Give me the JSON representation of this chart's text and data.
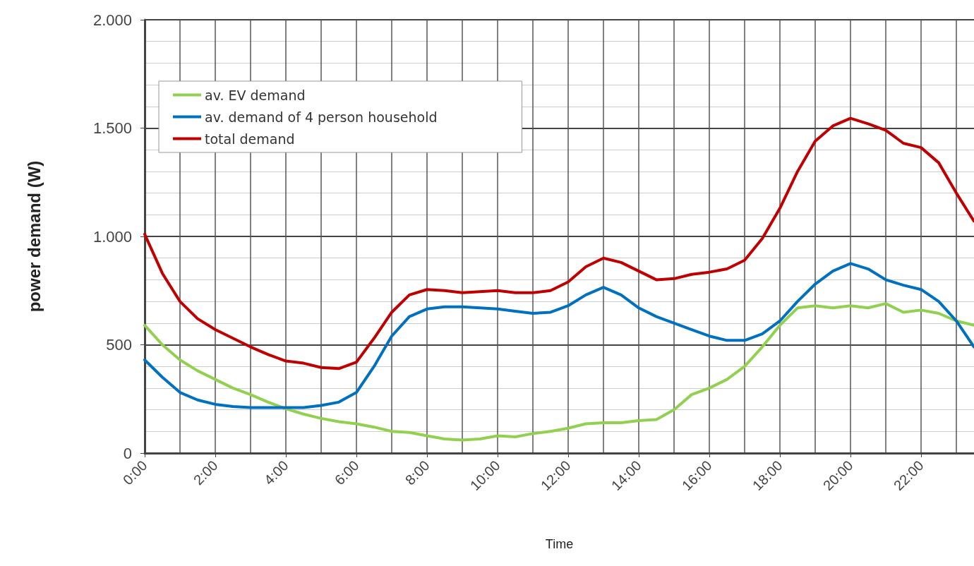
{
  "chart_data": {
    "type": "line",
    "xlabel": "Time",
    "ylabel": "power demand (W)",
    "x": [
      0,
      0.5,
      1,
      1.5,
      2,
      2.5,
      3,
      3.5,
      4,
      4.5,
      5,
      5.5,
      6,
      6.5,
      7,
      7.5,
      8,
      8.5,
      9,
      9.5,
      10,
      10.5,
      11,
      11.5,
      12,
      12.5,
      13,
      13.5,
      14,
      14.5,
      15,
      15.5,
      16,
      16.5,
      17,
      17.5,
      18,
      18.5,
      19,
      19.5,
      20,
      20.5,
      21,
      21.5,
      22,
      22.5,
      23,
      23.5
    ],
    "series": [
      {
        "name": "av. EV demand",
        "color": "#92d050",
        "values": [
          590,
          500,
          430,
          380,
          340,
          300,
          270,
          235,
          205,
          180,
          160,
          145,
          135,
          120,
          100,
          95,
          80,
          65,
          60,
          65,
          80,
          75,
          90,
          100,
          115,
          135,
          140,
          140,
          150,
          155,
          200,
          270,
          300,
          340,
          400,
          490,
          590,
          670,
          680,
          670,
          680,
          670,
          690,
          650,
          660,
          645,
          610,
          590
        ]
      },
      {
        "name": "av. demand of 4 person household",
        "color": "#0070c0",
        "values": [
          430,
          350,
          280,
          245,
          225,
          215,
          210,
          210,
          210,
          210,
          220,
          235,
          280,
          400,
          540,
          630,
          665,
          675,
          675,
          670,
          665,
          655,
          645,
          650,
          680,
          730,
          765,
          730,
          670,
          630,
          600,
          570,
          540,
          520,
          520,
          550,
          610,
          700,
          780,
          840,
          875,
          850,
          800,
          775,
          755,
          700,
          610,
          490
        ]
      },
      {
        "name": "total demand",
        "color": "#c00000",
        "values": [
          1010,
          830,
          700,
          620,
          570,
          530,
          490,
          455,
          425,
          415,
          395,
          390,
          420,
          530,
          650,
          730,
          755,
          750,
          740,
          745,
          750,
          740,
          740,
          750,
          790,
          860,
          900,
          880,
          840,
          800,
          805,
          825,
          835,
          850,
          890,
          990,
          1130,
          1300,
          1440,
          1510,
          1545,
          1520,
          1490,
          1430,
          1410,
          1340,
          1200,
          1070
        ]
      }
    ],
    "xlim": [
      0,
      23.5
    ],
    "xticks": [
      {
        "value": 0,
        "label": "0:00"
      },
      {
        "value": 2,
        "label": "2:00"
      },
      {
        "value": 4,
        "label": "4:00"
      },
      {
        "value": 6,
        "label": "6:00"
      },
      {
        "value": 8,
        "label": "8:00"
      },
      {
        "value": 10,
        "label": "10:00"
      },
      {
        "value": 12,
        "label": "12:00"
      },
      {
        "value": 14,
        "label": "14:00"
      },
      {
        "value": 16,
        "label": "16:00"
      },
      {
        "value": 18,
        "label": "18:00"
      },
      {
        "value": 20,
        "label": "20:00"
      },
      {
        "value": 22,
        "label": "22:00"
      }
    ],
    "ylim": [
      0,
      2000
    ],
    "yticks": [
      0,
      {
        "value": 500,
        "label": "500"
      },
      {
        "value": 1000,
        "label": "1.000"
      },
      {
        "value": 1500,
        "label": "1.500"
      },
      {
        "value": 2000,
        "label": "2.000"
      }
    ],
    "grid": true,
    "legend": "top left",
    "marker": "none",
    "line_style": "solid"
  }
}
